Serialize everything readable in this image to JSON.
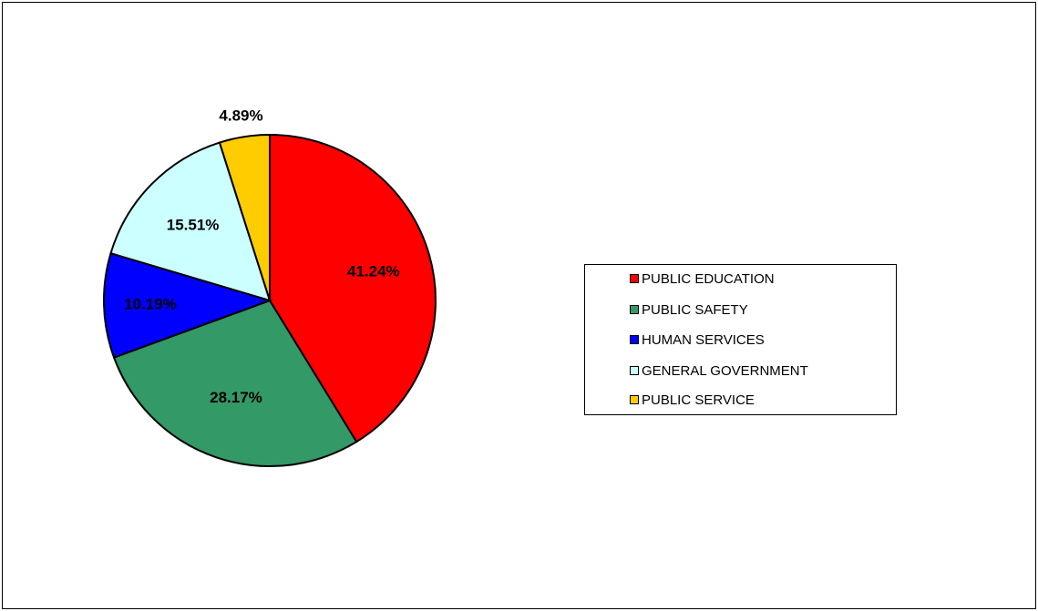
{
  "chart_data": {
    "type": "pie",
    "title": "",
    "slices": [
      {
        "name": "PUBLIC EDUCATION",
        "value": 41.24,
        "label": "41.24%",
        "color": "#FF0000"
      },
      {
        "name": "PUBLIC SAFETY",
        "value": 28.17,
        "label": "28.17%",
        "color": "#339966"
      },
      {
        "name": "HUMAN SERVICES",
        "value": 10.19,
        "label": "10.19%",
        "color": "#0000FF"
      },
      {
        "name": "GENERAL GOVERNMENT",
        "value": 15.51,
        "label": "15.51%",
        "color": "#CCFFFF"
      },
      {
        "name": "PUBLIC SERVICE",
        "value": 4.89,
        "label": "4.89%",
        "color": "#FFCC00"
      }
    ],
    "legend_position": "right"
  }
}
